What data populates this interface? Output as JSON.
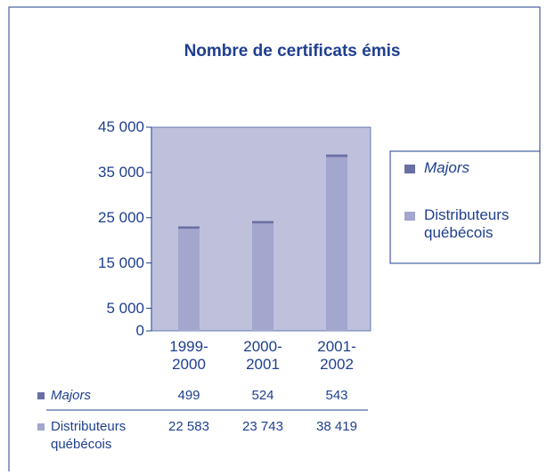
{
  "chart_data": {
    "type": "bar",
    "stacked": true,
    "title": "Nombre de certificats émis",
    "categories": [
      "1999-2000",
      "2000-2001",
      "2001-2002"
    ],
    "series": [
      {
        "name": "Majors",
        "color": "#6a6fa3",
        "values": [
          499,
          524,
          543
        ],
        "value_labels": [
          "499",
          "524",
          "543"
        ]
      },
      {
        "name": "Distributeurs québécois",
        "color": "#a3a6cd",
        "values": [
          22583,
          23743,
          38419
        ],
        "value_labels": [
          "22 583",
          "23 743",
          "38 419"
        ]
      }
    ],
    "ylim": [
      0,
      45000
    ],
    "yticks": [
      0,
      {
        "value": 5000,
        "label": "5 000"
      },
      {
        "value": 15000,
        "label": "15 000"
      },
      {
        "value": 25000,
        "label": "25 000"
      },
      {
        "value": 35000,
        "label": "35 000"
      },
      {
        "value": 45000,
        "label": "45 000"
      }
    ],
    "plot_background": "#bfc1dc",
    "legend": "right"
  }
}
